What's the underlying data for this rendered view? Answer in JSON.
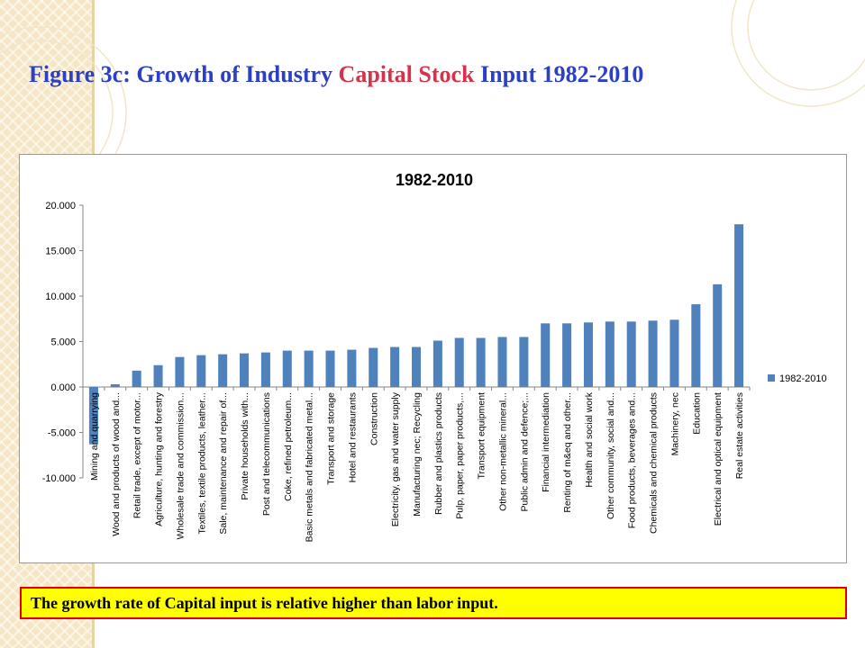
{
  "slide": {
    "title_part1": "Figure 3c: Growth of Industry ",
    "title_accent": "Capital Stock",
    "title_part2": " Input 1982-2010",
    "note": "The growth rate of Capital input is relative higher than labor input."
  },
  "colors": {
    "title": "#2b3fc7",
    "title_accent": "#d8324b",
    "bar": "#4f81bd",
    "note_bg": "#ffff00",
    "note_border": "#e00000"
  },
  "chart_data": {
    "type": "bar",
    "title": "1982-2010",
    "ylim": [
      -10,
      20
    ],
    "yticks": [
      -10,
      -5,
      0,
      5,
      10,
      15,
      20
    ],
    "ytick_labels": [
      "-10.000",
      "-5.000",
      "0.000",
      "5.000",
      "10.000",
      "15.000",
      "20.000"
    ],
    "grid": false,
    "legend_position": "right",
    "categories": [
      "Mining and quarrying",
      "Wood and products of wood and...",
      "Retail trade, except of motor...",
      "Agriculture, hunting and forestry",
      "Wholesale trade and commission...",
      "Textiles, textile products, leather...",
      "Sale, maintenance and repair of...",
      "Private households with...",
      "Post and telecommunications",
      "Coke, refined petroleum...",
      "Basic metals and fabricated metal...",
      "Transport and storage",
      "Hotel and restaurants",
      "Construction",
      "Electricity, gas and water supply",
      "Manufacturing nec; Recycling",
      "Rubber and plastics products",
      "Pulp, paper, paper products,...",
      "Transport equipment",
      "Other non-metallic mineral...",
      "Public admin and defence;...",
      "Financial intermediation",
      "Renting of m&eq and other...",
      "Health and social work",
      "Other community, social and...",
      "Food products, beverages and...",
      "Chemicals and chemical products",
      "Machinery, nec",
      "Education",
      "Electrical and optical equipment",
      "Real estate activities"
    ],
    "series": [
      {
        "name": "1982-2010",
        "values": [
          -6.3,
          0.3,
          1.8,
          2.4,
          3.3,
          3.5,
          3.6,
          3.7,
          3.8,
          4.0,
          4.0,
          4.0,
          4.1,
          4.3,
          4.4,
          4.4,
          5.1,
          5.4,
          5.4,
          5.5,
          5.5,
          7.0,
          7.0,
          7.1,
          7.2,
          7.2,
          7.3,
          7.4,
          9.1,
          11.3,
          17.9
        ]
      }
    ]
  }
}
